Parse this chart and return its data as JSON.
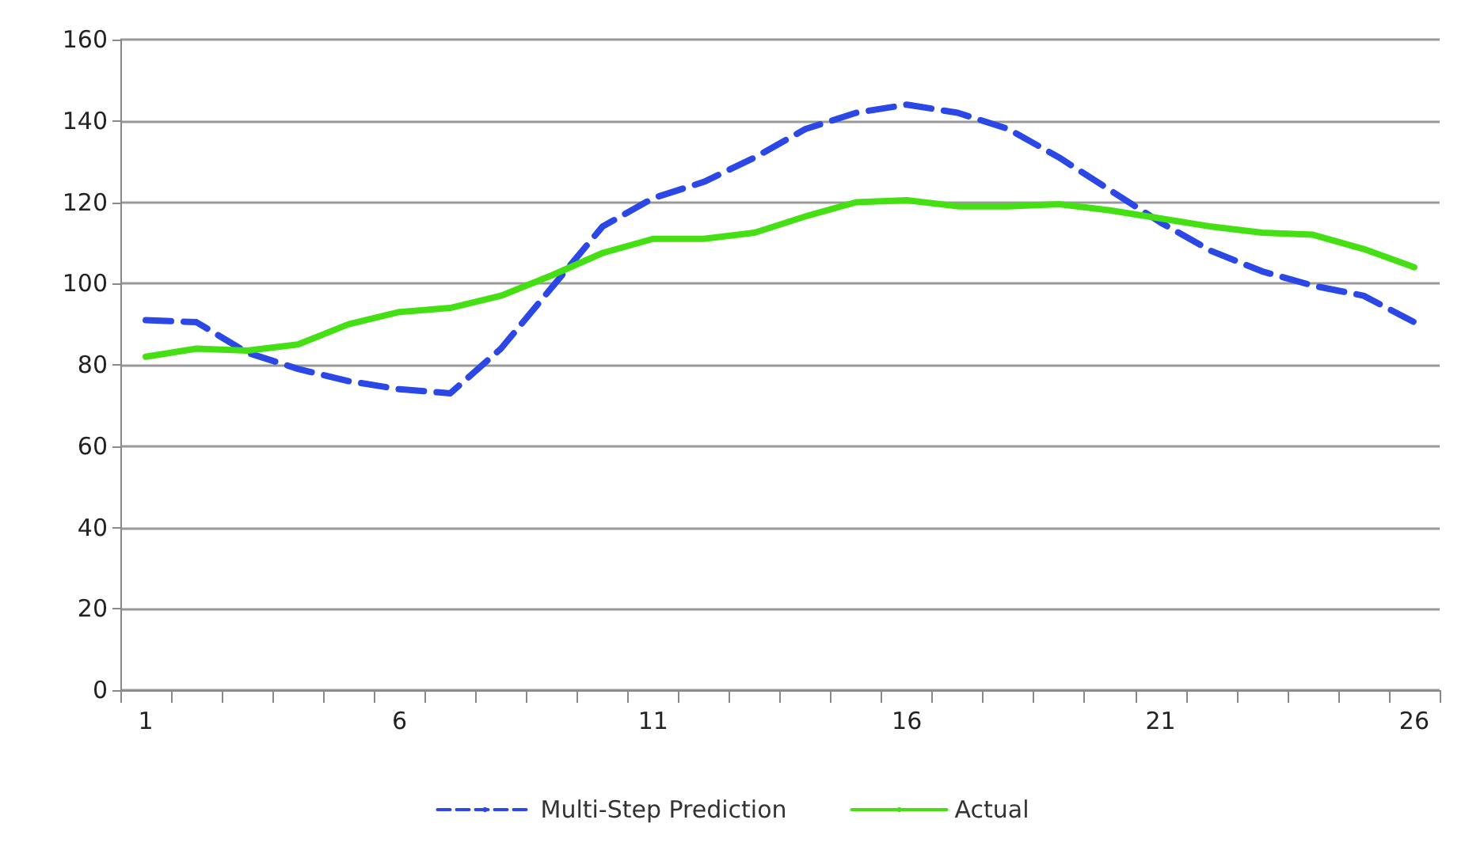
{
  "chart_data": {
    "type": "line",
    "categories": [
      "1",
      null,
      null,
      null,
      null,
      "6",
      null,
      null,
      null,
      null,
      "11",
      null,
      null,
      null,
      null,
      "16",
      null,
      null,
      null,
      null,
      "21",
      null,
      null,
      null,
      null,
      "26"
    ],
    "series": [
      {
        "name": "Multi-Step Prediction",
        "color": "#2b47e6",
        "line_style": "dashed",
        "values": [
          91,
          90.5,
          83,
          79,
          76,
          74,
          73,
          84,
          99,
          114,
          121,
          125,
          131,
          138,
          142,
          144,
          142,
          138,
          131,
          123,
          115,
          108,
          103,
          99.5,
          97,
          90.5
        ]
      },
      {
        "name": "Actual",
        "color": "#44e014",
        "line_style": "solid",
        "values": [
          82,
          84,
          83.5,
          85,
          90,
          93,
          94,
          97,
          102,
          107.5,
          111,
          111,
          112.5,
          116.5,
          120,
          120.5,
          119,
          119,
          119.5,
          118,
          116,
          114,
          112.5,
          112,
          108.5,
          104
        ]
      }
    ],
    "ylim": [
      0,
      160
    ],
    "yticks": [
      0,
      20,
      40,
      60,
      80,
      100,
      120,
      140,
      160
    ],
    "grid": "y",
    "legend": "bottom",
    "marker": "none"
  }
}
